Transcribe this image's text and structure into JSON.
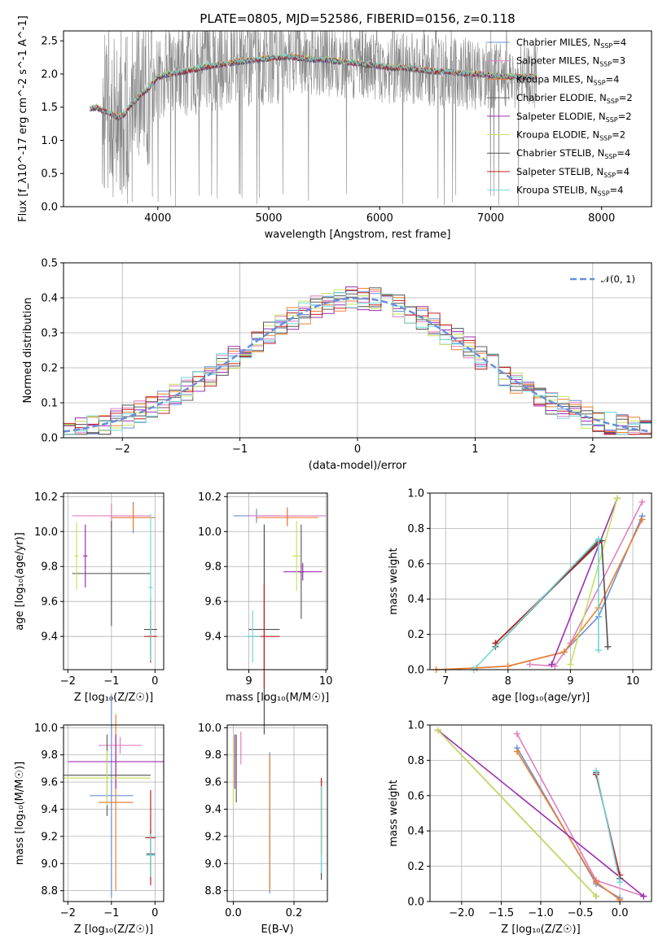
{
  "colors": {
    "Chabrier MILES": "#6a8fd8",
    "Salpeter MILES": "#e07fc0",
    "Kroupa MILES": "#ee8030",
    "Chabrier ELODIE": "#606060",
    "Salpeter ELODIE": "#9b30b0",
    "Kroupa ELODIE": "#c8e060",
    "Chabrier STELIB": "#505050",
    "Salpeter STELIB": "#c02020",
    "Kroupa STELIB": "#70d8d8",
    "data": "#888888",
    "normal": "#6a8fd8"
  },
  "chart_data": [
    {
      "id": "spectrum",
      "type": "line",
      "title": "PLATE=0805, MJD=52586, FIBERID=0156, z=0.118",
      "xlabel": "wavelength [Angstrom, rest frame]",
      "ylabel": "Flux [f_λ10^-17 erg cm^-2 s^-1 A^-1]",
      "xlim": [
        3150,
        8450
      ],
      "ylim": [
        0,
        2.65
      ],
      "xticks": [
        "4000",
        "5000",
        "6000",
        "7000",
        "8000"
      ],
      "yticks": [
        "0.0",
        "0.5",
        "1.0",
        "1.5",
        "2.0",
        "2.5"
      ],
      "legend_position": "upper right",
      "legend": [
        {
          "name": "Chabrier MILES, N",
          "sub": "SSP",
          "suffix": "=4"
        },
        {
          "name": "Salpeter MILES, N",
          "sub": "SSP",
          "suffix": "=3"
        },
        {
          "name": "Kroupa MILES, N",
          "sub": "SSP",
          "suffix": "=4"
        },
        {
          "name": "Chabrier ELODIE, N",
          "sub": "SSP",
          "suffix": "=2"
        },
        {
          "name": "Salpeter ELODIE, N",
          "sub": "SSP",
          "suffix": "=2"
        },
        {
          "name": "Kroupa ELODIE, N",
          "sub": "SSP",
          "suffix": "=2"
        },
        {
          "name": "Chabrier STELIB, N",
          "sub": "SSP",
          "suffix": "=4"
        },
        {
          "name": "Salpeter STELIB, N",
          "sub": "SSP",
          "suffix": "=4"
        },
        {
          "name": "Kroupa STELIB, N",
          "sub": "SSP",
          "suffix": "=4"
        }
      ],
      "model_points": {
        "x": [
          3390,
          3450,
          3500,
          3550,
          3600,
          3650,
          3700,
          3750,
          3800,
          3850,
          3900,
          3950,
          4000,
          4100,
          4200,
          4300,
          4400,
          4500,
          4600,
          4700,
          4800,
          4900,
          5000,
          5100,
          5200,
          5300,
          5400,
          5500,
          5600,
          5700,
          5800,
          5900,
          6000,
          6100,
          6200,
          6300,
          6400,
          6500,
          6600,
          6700,
          6800,
          6900,
          7000,
          7100,
          7200,
          7300,
          7400
        ],
        "y": [
          1.48,
          1.5,
          1.45,
          1.42,
          1.38,
          1.35,
          1.4,
          1.52,
          1.6,
          1.7,
          1.75,
          1.86,
          1.96,
          2.0,
          2.03,
          2.06,
          2.1,
          2.13,
          2.15,
          2.18,
          2.2,
          2.22,
          2.24,
          2.25,
          2.26,
          2.24,
          2.22,
          2.22,
          2.2,
          2.18,
          2.16,
          2.14,
          2.12,
          2.1,
          2.1,
          2.08,
          2.06,
          2.04,
          2.04,
          2.02,
          2.0,
          2.0,
          1.98,
          1.96,
          1.96,
          1.96,
          1.96
        ]
      }
    },
    {
      "id": "residuals",
      "type": "bar",
      "xlabel": "(data-model)/error",
      "ylabel": "Normed distribution",
      "xlim": [
        -2.5,
        2.5
      ],
      "ylim": [
        0,
        0.5
      ],
      "xticks": [
        "−2",
        "−1",
        "0",
        "1",
        "2"
      ],
      "yticks": [
        "0.0",
        "0.1",
        "0.2",
        "0.3",
        "0.4",
        "0.5"
      ],
      "legend_label": "𝒩(0, 1)",
      "legend_position": "upper right",
      "bin_width": 0.1,
      "hist_base": [
        0.02,
        0.02,
        0.03,
        0.04,
        0.05,
        0.05,
        0.06,
        0.07,
        0.08,
        0.09,
        0.1,
        0.11,
        0.12,
        0.14,
        0.15,
        0.16,
        0.17,
        0.18,
        0.2,
        0.21,
        0.23,
        0.24,
        0.25,
        0.26,
        0.28,
        0.3,
        0.31,
        0.32,
        0.34,
        0.35,
        0.37,
        0.38,
        0.39,
        0.4,
        0.4,
        0.41,
        0.4,
        0.4,
        0.39,
        0.38,
        0.37,
        0.36,
        0.34,
        0.32,
        0.31,
        0.3,
        0.28,
        0.27,
        0.25,
        0.24,
        0.22,
        0.21,
        0.2,
        0.19,
        0.17,
        0.16,
        0.15,
        0.14,
        0.12,
        0.11,
        0.1,
        0.09,
        0.08,
        0.07,
        0.06,
        0.05,
        0.05,
        0.04,
        0.03,
        0.03,
        0.02,
        0.02,
        0.02,
        0.02,
        0.01,
        0.01,
        0.01,
        0.01,
        0.01,
        0.01,
        0.01,
        0.01,
        0.01,
        0.01,
        0.01,
        0.01,
        0.01,
        0.01,
        0.01,
        0.01,
        0.01,
        0.01,
        0.01,
        0.01,
        0.01,
        0.01,
        0.01,
        0.01,
        0.01,
        0.01
      ]
    },
    {
      "id": "age-vs-Z",
      "type": "scatter",
      "xlabel": "Z [log₁₀(Z/Z☉)]",
      "ylabel": "age  [log₁₀(age/yr)]",
      "xlim": [
        -2.1,
        0.2
      ],
      "ylim": [
        9.21,
        10.22
      ],
      "xticks": [
        "−2",
        "−1",
        "0"
      ],
      "yticks": [
        "9.4",
        "9.6",
        "9.8",
        "10.0",
        "10.2"
      ],
      "points": [
        {
          "s": "Chabrier MILES",
          "x": -0.5,
          "y": 10.08,
          "xerr": 0.5,
          "yerr": 0.09
        },
        {
          "s": "Salpeter MILES",
          "x": -1.0,
          "y": 10.09,
          "xerr": 0.9,
          "yerr": 0.07
        },
        {
          "s": "Kroupa MILES",
          "x": -0.5,
          "y": 10.08,
          "xerr": 0.5,
          "yerr": 0.07
        },
        {
          "s": "Chabrier ELODIE",
          "x": -1.0,
          "y": 9.76,
          "xerr": 0.9,
          "yerr": 0.3
        },
        {
          "s": "Salpeter ELODIE",
          "x": -1.6,
          "y": 9.86,
          "xerr": 0.05,
          "yerr": 0.18
        },
        {
          "s": "Kroupa ELODIE",
          "x": -1.8,
          "y": 9.86,
          "xerr": 0.05,
          "yerr": 0.19
        },
        {
          "s": "Chabrier STELIB",
          "x": -0.1,
          "y": 9.44,
          "xerr": 0.15,
          "yerr": 0.18
        },
        {
          "s": "Salpeter STELIB",
          "x": -0.1,
          "y": 9.4,
          "xerr": 0.15,
          "yerr": 0.15
        },
        {
          "s": "Kroupa STELIB",
          "x": -0.1,
          "y": 9.68,
          "xerr": 0.05,
          "yerr": 0.42
        }
      ]
    },
    {
      "id": "age-vs-mass",
      "type": "scatter",
      "xlabel": "mass [log₁₀(M/M☉)]",
      "ylabel": "",
      "xlim": [
        8.72,
        10.02
      ],
      "ylim": [
        9.21,
        10.22
      ],
      "xticks": [
        "9",
        "10"
      ],
      "yticks": [
        "9.4",
        "9.6",
        "9.8",
        "10.0",
        "10.2"
      ],
      "points": [
        {
          "s": "Chabrier MILES",
          "x": 9.1,
          "y": 10.09,
          "xerr": 0.3,
          "yerr": 0.04
        },
        {
          "s": "Salpeter MILES",
          "x": 9.5,
          "y": 10.09,
          "xerr": 0.5,
          "yerr": 0.05
        },
        {
          "s": "Kroupa MILES",
          "x": 9.5,
          "y": 10.08,
          "xerr": 0.4,
          "yerr": 0.05
        },
        {
          "s": "Chabrier ELODIE",
          "x": 9.68,
          "y": 9.77,
          "xerr": 0.04,
          "yerr": 0.27
        },
        {
          "s": "Salpeter ELODIE",
          "x": 9.7,
          "y": 9.77,
          "xerr": 0.25,
          "yerr": 0.05
        },
        {
          "s": "Kroupa ELODIE",
          "x": 9.62,
          "y": 9.86,
          "xerr": 0.05,
          "yerr": 0.2
        },
        {
          "s": "Chabrier STELIB",
          "x": 9.2,
          "y": 9.44,
          "xerr": 0.2,
          "yerr": 0.6
        },
        {
          "s": "Salpeter STELIB",
          "x": 9.2,
          "y": 9.4,
          "xerr": 0.2,
          "yerr": 0.3
        },
        {
          "s": "Kroupa STELIB",
          "x": 9.05,
          "y": 9.4,
          "xerr": 0.1,
          "yerr": 0.15
        }
      ]
    },
    {
      "id": "mw-vs-age",
      "type": "line",
      "xlabel": "age  [log₁₀(age/yr)]",
      "ylabel": "mass weight",
      "xlim": [
        6.75,
        10.3
      ],
      "ylim": [
        0,
        1
      ],
      "xticks": [
        "7",
        "8",
        "9",
        "10"
      ],
      "yticks": [
        "0.0",
        "0.2",
        "0.4",
        "0.6",
        "0.8",
        "1.0"
      ],
      "series": [
        {
          "s": "Chabrier MILES",
          "x": [
            7.5,
            8.0,
            8.9,
            9.45,
            10.15
          ],
          "y": [
            0.01,
            0.02,
            0.1,
            0.3,
            0.87
          ]
        },
        {
          "s": "Salpeter MILES",
          "x": [
            8.35,
            8.75,
            9.0,
            10.15
          ],
          "y": [
            0.03,
            0.02,
            0.15,
            0.95
          ]
        },
        {
          "s": "Kroupa MILES",
          "x": [
            6.85,
            7.5,
            8.0,
            8.9,
            9.45,
            10.15
          ],
          "y": [
            0.0,
            0.01,
            0.02,
            0.1,
            0.35,
            0.85
          ]
        },
        {
          "s": "Chabrier ELODIE",
          "x": [
            7.8,
            9.45
          ],
          "y": [
            0.13,
            0.73
          ]
        },
        {
          "s": "Salpeter ELODIE",
          "x": [
            8.7,
            9.75
          ],
          "y": [
            0.03,
            0.97
          ]
        },
        {
          "s": "Kroupa ELODIE",
          "x": [
            9.0,
            9.75
          ],
          "y": [
            0.03,
            0.97
          ]
        },
        {
          "s": "Chabrier STELIB",
          "x": [
            7.8,
            9.5,
            9.6
          ],
          "y": [
            0.15,
            0.73,
            0.13
          ]
        },
        {
          "s": "Salpeter STELIB",
          "x": [
            7.8,
            9.45
          ],
          "y": [
            0.15,
            0.72
          ]
        },
        {
          "s": "Kroupa STELIB",
          "x": [
            7.45,
            9.45,
            9.45
          ],
          "y": [
            0.0,
            0.74,
            0.11
          ]
        }
      ]
    },
    {
      "id": "mass-vs-Z",
      "type": "scatter",
      "xlabel": "Z [log₁₀(Z/Z☉)]",
      "ylabel": "mass [log₁₀(M/M☉)]",
      "xlim": [
        -2.1,
        0.2
      ],
      "ylim": [
        8.72,
        10.02
      ],
      "xticks": [
        "−2",
        "−1",
        "0"
      ],
      "yticks": [
        "8.8",
        "9.0",
        "9.2",
        "9.4",
        "9.6",
        "9.8",
        "10.0"
      ],
      "points": [
        {
          "s": "Chabrier MILES",
          "x": -1.0,
          "y": 9.5,
          "xerr": 0.5,
          "yerr": 0.75
        },
        {
          "s": "Salpeter MILES",
          "x": -0.8,
          "y": 9.87,
          "xerr": 0.5,
          "yerr": 0.06
        },
        {
          "s": "Kroupa MILES",
          "x": -0.9,
          "y": 9.45,
          "xerr": 0.4,
          "yerr": 0.65
        },
        {
          "s": "Chabrier ELODIE",
          "x": -1.1,
          "y": 9.65,
          "xerr": 1.0,
          "yerr": 0.3
        },
        {
          "s": "Salpeter ELODIE",
          "x": -0.9,
          "y": 9.75,
          "xerr": 1.1,
          "yerr": 0.2
        },
        {
          "s": "Kroupa ELODIE",
          "x": -1.1,
          "y": 9.63,
          "xerr": 1.0,
          "yerr": 0.2
        },
        {
          "s": "Chabrier STELIB",
          "x": -0.1,
          "y": 9.07,
          "xerr": 0.1,
          "yerr": 0.18
        },
        {
          "s": "Salpeter STELIB",
          "x": -0.1,
          "y": 9.19,
          "xerr": 0.12,
          "yerr": 0.35
        },
        {
          "s": "Kroupa STELIB",
          "x": -0.1,
          "y": 9.06,
          "xerr": 0.1,
          "yerr": 0.16
        }
      ]
    },
    {
      "id": "mass-vs-ebv",
      "type": "scatter",
      "xlabel": "E(B-V)",
      "ylabel": "",
      "xlim": [
        -0.02,
        0.31
      ],
      "ylim": [
        8.72,
        10.02
      ],
      "xticks": [
        "0.0",
        "0.2"
      ],
      "yticks": [
        "8.8",
        "9.0",
        "9.2",
        "9.4",
        "9.6",
        "9.8",
        "10.0"
      ],
      "points": [
        {
          "s": "Chabrier MILES",
          "x": 0.12,
          "y": 9.3,
          "xerr": 0,
          "yerr": 0.52
        },
        {
          "s": "Salpeter MILES",
          "x": 0.025,
          "y": 9.85,
          "xerr": 0,
          "yerr": 0.12
        },
        {
          "s": "Kroupa MILES",
          "x": 0.12,
          "y": 9.3,
          "xerr": 0,
          "yerr": 0.5
        },
        {
          "s": "Chabrier ELODIE",
          "x": 0.01,
          "y": 9.7,
          "xerr": 0,
          "yerr": 0.25
        },
        {
          "s": "Salpeter ELODIE",
          "x": 0.005,
          "y": 9.75,
          "xerr": 0,
          "yerr": 0.2
        },
        {
          "s": "Kroupa ELODIE",
          "x": 0.0,
          "y": 9.68,
          "xerr": 0,
          "yerr": 0.25
        },
        {
          "s": "Chabrier STELIB",
          "x": 0.29,
          "y": 9.25,
          "xerr": 0,
          "yerr": 0.37
        },
        {
          "s": "Salpeter STELIB",
          "x": 0.29,
          "y": 9.35,
          "xerr": 0,
          "yerr": 0.28
        },
        {
          "s": "Kroupa STELIB",
          "x": 0.29,
          "y": 9.25,
          "xerr": 0,
          "yerr": 0.32
        }
      ]
    },
    {
      "id": "mw-vs-Z",
      "type": "line",
      "xlabel": "Z [log₁₀(Z/Z☉)]",
      "ylabel": "mass weight",
      "xlim": [
        -2.4,
        0.4
      ],
      "ylim": [
        0,
        1
      ],
      "xticks": [
        "−2.0",
        "−1.5",
        "−1.0",
        "−0.5",
        "0.0"
      ],
      "yticks": [
        "0.0",
        "0.2",
        "0.4",
        "0.6",
        "0.8",
        "1.0"
      ],
      "series": [
        {
          "s": "Chabrier MILES",
          "x": [
            -1.3,
            -0.3,
            0.0
          ],
          "y": [
            0.87,
            0.1,
            0.02
          ]
        },
        {
          "s": "Salpeter MILES",
          "x": [
            -1.3,
            -0.3,
            0.3
          ],
          "y": [
            0.95,
            0.12,
            0.03
          ]
        },
        {
          "s": "Kroupa MILES",
          "x": [
            -1.3,
            -0.3,
            0.0
          ],
          "y": [
            0.85,
            0.11,
            0.01
          ]
        },
        {
          "s": "Chabrier ELODIE",
          "x": [
            -2.3,
            -0.3
          ],
          "y": [
            0.97,
            0.03
          ]
        },
        {
          "s": "Salpeter ELODIE",
          "x": [
            -2.3,
            0.3
          ],
          "y": [
            0.97,
            0.03
          ]
        },
        {
          "s": "Kroupa ELODIE",
          "x": [
            -2.3,
            -0.3
          ],
          "y": [
            0.97,
            0.03
          ]
        },
        {
          "s": "Chabrier STELIB",
          "x": [
            -0.3,
            0.0
          ],
          "y": [
            0.73,
            0.13
          ]
        },
        {
          "s": "Salpeter STELIB",
          "x": [
            -0.3,
            0.0
          ],
          "y": [
            0.72,
            0.15
          ]
        },
        {
          "s": "Kroupa STELIB",
          "x": [
            -0.3,
            0.0
          ],
          "y": [
            0.74,
            0.11
          ]
        }
      ]
    }
  ]
}
